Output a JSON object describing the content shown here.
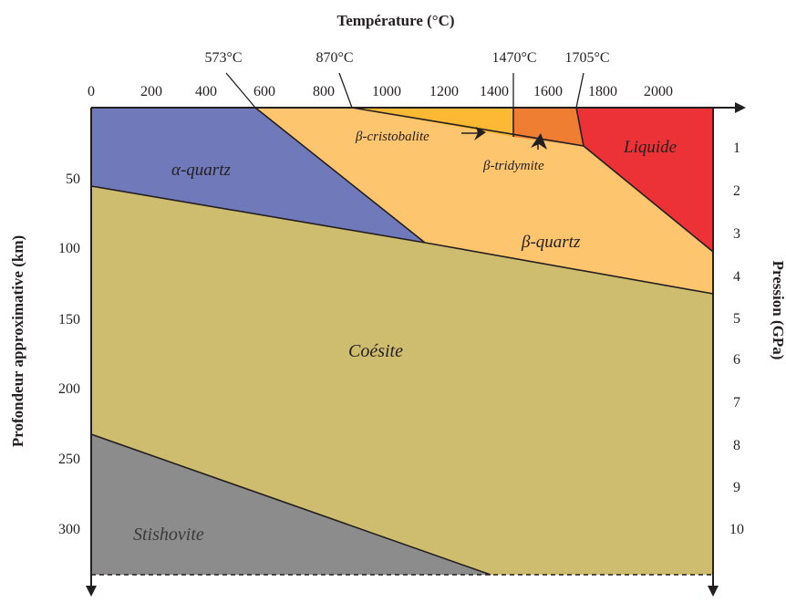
{
  "title": "Température (°C)",
  "left_axis_label": "Profondeur approximative (km)",
  "right_axis_label": "Pression (GPa)",
  "temperature_ticks": [
    "0",
    "200",
    "400",
    "600",
    "800",
    "1000",
    "1200",
    "1400",
    "1600",
    "1800",
    "2000"
  ],
  "depth_ticks": [
    "50",
    "100",
    "150",
    "200",
    "250",
    "300"
  ],
  "pressure_ticks": [
    "1",
    "2",
    "3",
    "4",
    "5",
    "6",
    "7",
    "8",
    "9",
    "10"
  ],
  "callouts": [
    "573°C",
    "870°C",
    "1470°C",
    "1705°C"
  ],
  "phases": {
    "alpha_quartz": "α-quartz",
    "beta_quartz": "β-quartz",
    "beta_cristobalite": "β-cristobalite",
    "beta_tridymite": "β-tridymite",
    "liquide": "Liquide",
    "coesite": "Coésite",
    "stishovite": "Stishovite"
  },
  "colors": {
    "alpha_quartz": "#7079b9",
    "beta_quartz": "#fdc56e",
    "beta_cristobalite": "#fdb933",
    "beta_tridymite": "#f07e32",
    "liquide": "#ed3237",
    "coesite": "#cfbd6f",
    "stishovite": "#8d8c8c",
    "outline": "#231f20"
  }
}
